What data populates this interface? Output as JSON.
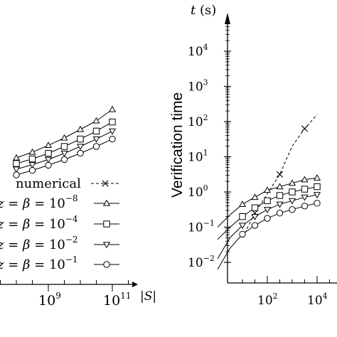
{
  "chart_data": [
    {
      "type": "line",
      "panel": "left",
      "xlabel": "|S|",
      "x_ticks": [
        "10",
        "9",
        "10",
        "11"
      ],
      "x_tick_values": [
        1000000000.0,
        100000000000.0
      ],
      "x_scale": "log",
      "legend_placement": "bottom-right",
      "legend": [
        {
          "text": "numerical",
          "style": "dashed",
          "marker": "cross"
        },
        {
          "text_left": "z = β = 10",
          "exp": "−8",
          "marker": "triangle"
        },
        {
          "text_left": "z = β = 10",
          "exp": "−4",
          "marker": "square"
        },
        {
          "text_left": "z = β = 10",
          "exp": "−2",
          "marker": "triangle-down"
        },
        {
          "text_left": "z = β = 10",
          "exp": "−1",
          "marker": "circle"
        }
      ],
      "series": [
        {
          "marker": "triangle",
          "values_px_free_note": "",
          "x": [
            8,
            8.5,
            9,
            9.5,
            10,
            10.5,
            11
          ],
          "y": [
            0.35,
            0.45,
            0.57,
            0.7,
            0.85,
            1.0,
            1.2
          ]
        },
        {
          "marker": "square",
          "x": [
            8,
            8.5,
            9,
            9.5,
            10,
            10.5,
            11
          ],
          "y": [
            0.25,
            0.33,
            0.43,
            0.55,
            0.68,
            0.82,
            0.98
          ]
        },
        {
          "marker": "triangle-down",
          "x": [
            8,
            8.5,
            9,
            9.5,
            10,
            10.5,
            11
          ],
          "y": [
            0.15,
            0.23,
            0.32,
            0.43,
            0.55,
            0.68,
            0.82
          ]
        },
        {
          "marker": "circle",
          "x": [
            8,
            8.5,
            9,
            9.5,
            10,
            10.5,
            11
          ],
          "y": [
            0.05,
            0.13,
            0.22,
            0.32,
            0.43,
            0.55,
            0.68
          ]
        }
      ]
    },
    {
      "type": "line",
      "panel": "right",
      "ylabel": "Verification time",
      "y_axis_title": "t (s)",
      "x_scale": "log",
      "y_scale": "log",
      "x_ticks": [
        {
          "base": "10",
          "exp": "2"
        },
        {
          "base": "10",
          "exp": "4"
        }
      ],
      "y_ticks": [
        {
          "base": "10",
          "exp": "4",
          "value": 4
        },
        {
          "base": "10",
          "exp": "3",
          "value": 3
        },
        {
          "base": "10",
          "exp": "2",
          "value": 2
        },
        {
          "base": "10",
          "exp": "1",
          "value": 1
        },
        {
          "base": "10",
          "exp": "0",
          "value": 0
        },
        {
          "base": "10",
          "exp": "−1",
          "value": -1
        },
        {
          "base": "10",
          "exp": "−2",
          "value": -2
        }
      ],
      "series": [
        {
          "marker": "cross",
          "style": "dashed",
          "x": [
            1.0,
            2.0,
            2.5,
            3.0,
            3.5,
            4.0,
            4.5,
            5.0
          ],
          "y": [
            -2.7,
            -1.3,
            -0.6,
            -0.05,
            0.5,
            1.3,
            1.8,
            2.2
          ]
        },
        {
          "marker": "triangle",
          "x": [
            1.0,
            1.5,
            2.0,
            2.5,
            3.0,
            3.5,
            4.0,
            4.5,
            5.0
          ],
          "y": [
            -1.0,
            -0.65,
            -0.35,
            -0.15,
            0.05,
            0.15,
            0.25,
            0.35,
            0.4
          ]
        },
        {
          "marker": "square",
          "x": [
            1.0,
            1.5,
            2.0,
            2.5,
            3.0,
            3.5,
            4.0,
            4.5,
            5.0
          ],
          "y": [
            -1.35,
            -1.0,
            -0.7,
            -0.45,
            -0.25,
            -0.1,
            0.0,
            0.08,
            0.15
          ]
        },
        {
          "marker": "triangle-down",
          "x": [
            1.0,
            1.5,
            2.0,
            2.5,
            3.0,
            3.5,
            4.0,
            4.5,
            5.0
          ],
          "y": [
            -1.9,
            -1.3,
            -0.95,
            -0.7,
            -0.5,
            -0.35,
            -0.25,
            -0.15,
            -0.08
          ]
        },
        {
          "marker": "circle",
          "x": [
            1.0,
            1.5,
            2.0,
            2.5,
            3.0,
            3.5,
            4.0,
            4.5,
            5.0
          ],
          "y": [
            -2.2,
            -1.6,
            -1.2,
            -0.95,
            -0.75,
            -0.6,
            -0.5,
            -0.4,
            -0.32
          ]
        }
      ]
    }
  ]
}
